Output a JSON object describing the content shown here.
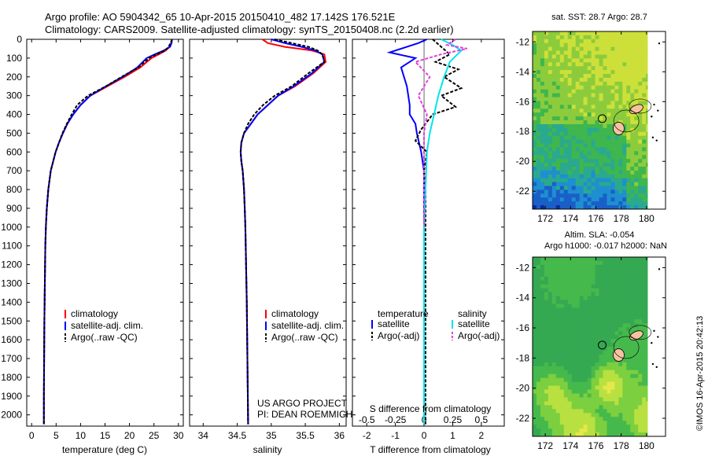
{
  "header": {
    "line1": "Argo profile: AO 5904342_65 10-Apr-2015 20150410_482 17.142S 176.521E",
    "line2": "Climatology: CARS2009. Satellite-adjusted climatology: synTS_20150408.nc (2.2d earlier)"
  },
  "side_text": "©IMOS 16-Apr-2015 20:42:13",
  "project_text": [
    "US ARGO PROJECT",
    "PI: DEAN ROEMMICH"
  ],
  "colors": {
    "climatology": "#ff0000",
    "satellite": "#0000ff",
    "argo": "#000000",
    "sat_sal": "#00e5ee",
    "argo_sal": "#e040e0"
  },
  "chart_data": [
    {
      "type": "line",
      "id": "temperature",
      "xlabel": "temperature (deg C)",
      "xlim": [
        -1,
        31
      ],
      "ylim": [
        2060,
        0
      ],
      "xticks": [
        0,
        5,
        10,
        15,
        20,
        25,
        30
      ],
      "yticks": [
        0,
        100,
        200,
        300,
        400,
        500,
        600,
        700,
        800,
        900,
        1000,
        1100,
        1200,
        1300,
        1400,
        1500,
        1600,
        1700,
        1800,
        1900,
        2000
      ],
      "legend": [
        "climatology",
        "satellite-adj. clim.",
        "Argo(..raw -QC)"
      ],
      "series": [
        {
          "name": "climatology",
          "color": "#ff0000",
          "x": [
            28.7,
            28.5,
            28.2,
            27.4,
            26,
            24.5,
            22.2,
            19,
            15.5,
            12,
            10,
            8.5,
            7.3,
            6.4,
            5.6,
            4.9,
            4.4,
            3.9,
            3.4,
            3.1,
            2.9,
            2.8,
            2.75,
            2.7,
            2.6,
            2.55,
            2.5,
            2.5
          ],
          "y": [
            0,
            20,
            40,
            60,
            80,
            100,
            150,
            200,
            250,
            300,
            350,
            400,
            450,
            500,
            550,
            600,
            650,
            700,
            800,
            900,
            1000,
            1100,
            1200,
            1300,
            1500,
            1700,
            1900,
            2050
          ]
        },
        {
          "name": "satellite-adj. clim.",
          "color": "#0000ff",
          "x": [
            28.7,
            28.6,
            28.3,
            27,
            25.2,
            23.5,
            21.6,
            18.6,
            15.2,
            12,
            10,
            8.5,
            7.3,
            6.4,
            5.6,
            4.9,
            4.4,
            3.9,
            3.4,
            3.1,
            2.9,
            2.8,
            2.75,
            2.7,
            2.6,
            2.55,
            2.5,
            2.5
          ],
          "y": [
            0,
            20,
            40,
            60,
            80,
            100,
            150,
            200,
            250,
            300,
            350,
            400,
            450,
            500,
            550,
            600,
            650,
            700,
            800,
            900,
            1000,
            1100,
            1200,
            1300,
            1500,
            1700,
            1900,
            2050
          ]
        },
        {
          "name": "Argo(..raw -QC)",
          "color": "#000000",
          "dash": true,
          "x": [
            28.7,
            28.4,
            28,
            27.3,
            25.5,
            24,
            21.8,
            18.4,
            15.2,
            11.5,
            9.3,
            8.2,
            7.2,
            6.3,
            5.6,
            4.9,
            4.4,
            3.9,
            3.4,
            3.1,
            2.9,
            2.8,
            2.75,
            2.7,
            2.6,
            2.55,
            2.5,
            2.5
          ],
          "y": [
            0,
            20,
            40,
            60,
            80,
            100,
            150,
            200,
            250,
            300,
            350,
            400,
            450,
            500,
            550,
            600,
            650,
            700,
            800,
            900,
            1000,
            1100,
            1200,
            1300,
            1500,
            1700,
            1900,
            2050
          ]
        }
      ]
    },
    {
      "type": "line",
      "id": "salinity",
      "xlabel": "salinity",
      "xlim": [
        33.8,
        36.1
      ],
      "ylim": [
        2060,
        0
      ],
      "xticks": [
        34,
        34.5,
        35,
        35.5,
        36
      ],
      "legend": [
        "climatology",
        "satellite-adj. clim.",
        "Argo(..raw -QC)"
      ],
      "series": [
        {
          "name": "climatology",
          "color": "#ff0000",
          "x": [
            34.87,
            34.95,
            35.2,
            35.6,
            35.78,
            35.8,
            35.62,
            35.35,
            35.1,
            34.95,
            34.8,
            34.7,
            34.6,
            34.56,
            34.55,
            34.56,
            34.58,
            34.6,
            34.61,
            34.62,
            34.63,
            34.64,
            34.65,
            34.66
          ],
          "y": [
            0,
            20,
            40,
            60,
            80,
            120,
            180,
            250,
            300,
            350,
            400,
            450,
            500,
            550,
            600,
            650,
            700,
            800,
            900,
            1000,
            1200,
            1400,
            1700,
            2050
          ]
        },
        {
          "name": "satellite-adj. clim.",
          "color": "#0000ff",
          "x": [
            35.0,
            35.2,
            35.45,
            35.65,
            35.75,
            35.78,
            35.6,
            35.33,
            35.1,
            34.95,
            34.8,
            34.7,
            34.6,
            34.56,
            34.55,
            34.56,
            34.58,
            34.6,
            34.61,
            34.62,
            34.63,
            34.64,
            34.65,
            34.66
          ],
          "y": [
            0,
            20,
            40,
            60,
            80,
            120,
            180,
            250,
            300,
            350,
            400,
            450,
            500,
            550,
            600,
            650,
            700,
            800,
            900,
            1000,
            1200,
            1400,
            1700,
            2050
          ]
        },
        {
          "name": "Argo(..raw -QC)",
          "color": "#000000",
          "dash": true,
          "x": [
            35.05,
            35.3,
            35.55,
            35.68,
            35.75,
            35.78,
            35.55,
            35.3,
            35.05,
            34.88,
            34.75,
            34.66,
            34.6,
            34.56,
            34.55,
            34.56,
            34.58,
            34.6,
            34.61,
            34.62,
            34.63,
            34.64,
            34.65,
            34.66
          ],
          "y": [
            0,
            20,
            40,
            60,
            80,
            120,
            180,
            250,
            300,
            350,
            400,
            450,
            500,
            550,
            600,
            650,
            700,
            800,
            900,
            1000,
            1200,
            1400,
            1700,
            2050
          ]
        }
      ]
    },
    {
      "type": "line",
      "id": "difference",
      "xlabel": "T difference from climatology",
      "xlabel_top": "S difference from climatology",
      "xlim": [
        -2.5,
        2.8
      ],
      "ylim": [
        2060,
        0
      ],
      "xticks": [
        -2,
        -1,
        0,
        1,
        2
      ],
      "xticks_top": [
        "-0.5",
        "-0.25",
        "0",
        "0.25",
        "0.5"
      ],
      "legend_titles": [
        "temperature",
        "salinity"
      ],
      "legend": [
        "satellite",
        "Argo(-adj)",
        "satellite",
        "Argo(-adj)"
      ],
      "series": [
        {
          "name": "temperature satellite",
          "color": "#0000ff",
          "x": [
            0.1,
            -0.2,
            -1.2,
            -0.3,
            -0.8,
            -0.6,
            -0.5,
            -0.5,
            -0.3,
            -0.25,
            -0.1,
            0,
            0,
            0,
            0,
            0
          ],
          "y": [
            0,
            20,
            70,
            100,
            150,
            250,
            350,
            400,
            450,
            500,
            600,
            700,
            800,
            1000,
            1500,
            2050
          ]
        },
        {
          "name": "temperature Argo(-adj)",
          "color": "#000000",
          "dash": true,
          "x": [
            0.3,
            0.6,
            0.9,
            0.4,
            1.2,
            0.7,
            1.3,
            0.6,
            1.1,
            0.3,
            -0.1,
            -0.3,
            0.1,
            0,
            0.05,
            0.05,
            0.05,
            0.05
          ],
          "y": [
            0,
            40,
            80,
            120,
            160,
            200,
            260,
            300,
            360,
            400,
            480,
            540,
            600,
            700,
            800,
            1000,
            1500,
            2050
          ]
        },
        {
          "name": "salinity satellite",
          "color": "#00e5ee",
          "x": [
            0.6,
            1.0,
            1.3,
            0.9,
            0.7,
            0.5,
            0.35,
            0.2,
            0.1,
            0.05,
            0,
            0,
            0
          ],
          "y": [
            0,
            30,
            60,
            120,
            200,
            300,
            400,
            500,
            600,
            800,
            1000,
            1500,
            2050
          ]
        },
        {
          "name": "salinity Argo(-adj)",
          "color": "#e040e0",
          "dash": true,
          "x": [
            1.1,
            0.8,
            1.5,
            0.6,
            -0.3,
            0.2,
            -0.2,
            0.1,
            0,
            0,
            0
          ],
          "y": [
            0,
            30,
            50,
            80,
            120,
            200,
            300,
            400,
            500,
            700,
            1000
          ]
        }
      ]
    },
    {
      "type": "heatmap",
      "id": "sst-map",
      "title": "sat. SST: 28.7 Argo: 28.7",
      "xticks": [
        172,
        174,
        176,
        178,
        180
      ],
      "yticks": [
        -12,
        -14,
        -16,
        -18,
        -20,
        -22
      ],
      "xlim": [
        171,
        181.5
      ],
      "ylim": [
        -23.2,
        -11.3
      ],
      "profile_marker": [
        176.5,
        -17.14
      ]
    },
    {
      "type": "heatmap",
      "id": "sla-map",
      "title": "Altim. SLA: -0.054",
      "subtitle": "Argo h1000: -0.017 h2000: NaN",
      "xticks": [
        172,
        174,
        176,
        178,
        180
      ],
      "yticks": [
        -12,
        -14,
        -16,
        -18,
        -20,
        -22
      ],
      "xlim": [
        171,
        181.5
      ],
      "ylim": [
        -23.2,
        -11.3
      ],
      "profile_marker": [
        176.5,
        -17.14
      ]
    }
  ]
}
